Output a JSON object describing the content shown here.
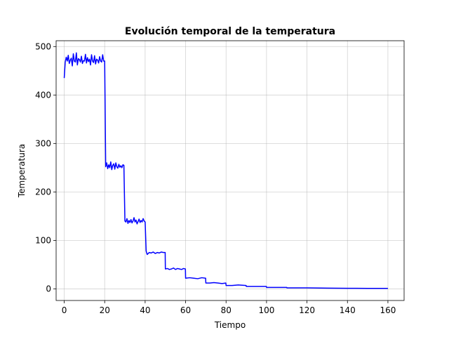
{
  "chart_data": {
    "type": "line",
    "title": "Evolución temporal de la temperatura",
    "xlabel": "Tiempo",
    "ylabel": "Temperatura",
    "xlim": [
      -4,
      168
    ],
    "ylim": [
      -24,
      512
    ],
    "xticks": [
      0,
      20,
      40,
      60,
      80,
      100,
      120,
      140,
      160
    ],
    "yticks": [
      0,
      100,
      200,
      300,
      400,
      500
    ],
    "grid": true,
    "line_color": "#0000ff",
    "series": [
      {
        "x": [
          0,
          0.5,
          1,
          1.5,
          2,
          2.5,
          3,
          3.5,
          4,
          4.5,
          5,
          5.5,
          6,
          6.5,
          7,
          7.5,
          8,
          8.5,
          9,
          9.5,
          10,
          10.5,
          11,
          11.5,
          12,
          12.5,
          13,
          13.5,
          14,
          14.5,
          15,
          15.5,
          16,
          16.5,
          17,
          17.5,
          18,
          18.5,
          19,
          19.5,
          20,
          20.5,
          21,
          21.5,
          22,
          22.5,
          23,
          23.5,
          24,
          24.5,
          25,
          25.5,
          26,
          26.5,
          27,
          27.5,
          28,
          28.5,
          29,
          29.5,
          30,
          30.5,
          31,
          31.5,
          32,
          32.5,
          33,
          33.5,
          34,
          34.5,
          35,
          35.5,
          36,
          36.5,
          37,
          37.5,
          38,
          38.5,
          39,
          39.5,
          40,
          40.5,
          41,
          42,
          43,
          44,
          45,
          46,
          47,
          48,
          49,
          49.9,
          50,
          51,
          52,
          53,
          54,
          55,
          56,
          57,
          58,
          59,
          59.9,
          60,
          62,
          64,
          66,
          68,
          69.9,
          70,
          72,
          74,
          76,
          78,
          79.9,
          80,
          83,
          86,
          89.9,
          90,
          95,
          99.9,
          100,
          105,
          110,
          110.1,
          120,
          130,
          140,
          150,
          160
        ],
        "y": [
          435,
          468,
          478,
          470,
          482,
          465,
          472,
          476,
          460,
          485,
          470,
          468,
          487,
          462,
          475,
          473,
          468,
          480,
          465,
          471,
          470,
          484,
          466,
          477,
          469,
          474,
          462,
          483,
          470,
          467,
          481,
          464,
          474,
          472,
          466,
          479,
          470,
          468,
          483,
          470,
          470,
          252,
          260,
          248,
          256,
          250,
          262,
          246,
          255,
          258,
          247,
          260,
          252,
          249,
          257,
          251,
          254,
          250,
          256,
          255,
          140,
          138,
          145,
          135,
          141,
          137,
          143,
          136,
          140,
          147,
          138,
          142,
          134,
          139,
          144,
          137,
          141,
          138,
          145,
          140,
          138,
          78,
          71,
          75,
          74,
          76,
          73,
          75,
          74,
          76,
          75,
          75,
          41,
          42,
          40,
          41,
          43,
          40,
          42,
          41,
          40,
          42,
          41,
          22,
          23,
          22,
          21,
          23,
          22,
          12,
          12,
          13,
          12,
          11,
          12,
          7,
          7,
          8,
          7,
          5,
          5,
          5,
          3,
          3,
          3,
          2,
          2,
          1.5,
          1.2,
          1,
          1
        ]
      }
    ]
  }
}
